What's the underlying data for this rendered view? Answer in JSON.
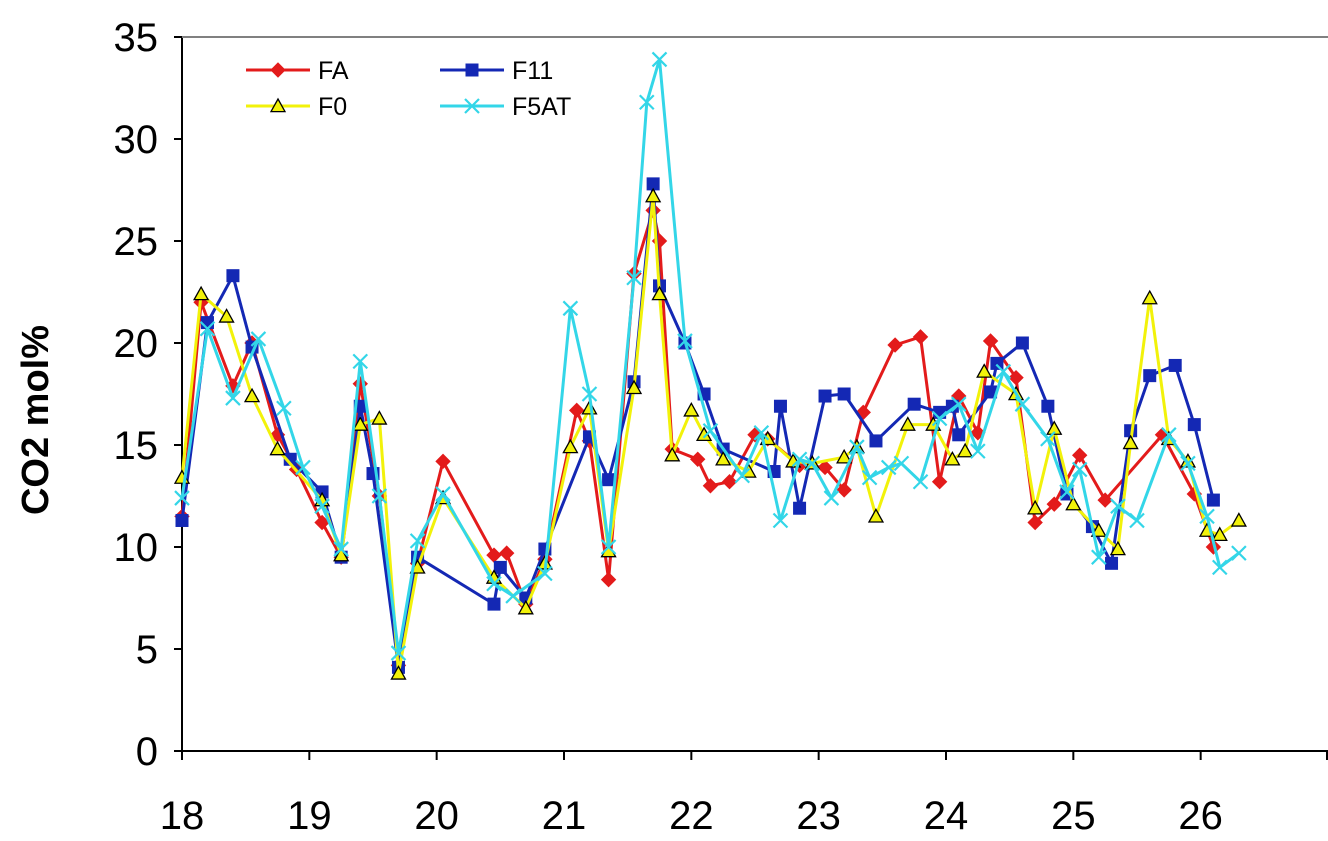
{
  "chart_data": {
    "type": "line",
    "title": "",
    "xlabel": "",
    "ylabel": "CO2 mol%",
    "xlim": [
      18,
      27
    ],
    "ylim": [
      0,
      35
    ],
    "xticks": [
      "18",
      "19",
      "20",
      "21",
      "22",
      "23",
      "24",
      "25",
      "26"
    ],
    "yticks": [
      "0",
      "5",
      "10",
      "15",
      "20",
      "25",
      "30",
      "35"
    ],
    "grid": false,
    "legend_position": "top-left",
    "series": [
      {
        "name": "FA",
        "color": "#e31b1b",
        "marker": "diamond",
        "points": [
          [
            18.0,
            11.5
          ],
          [
            18.15,
            22.0
          ],
          [
            18.4,
            17.9
          ],
          [
            18.55,
            20.0
          ],
          [
            18.75,
            15.5
          ],
          [
            18.9,
            13.8
          ],
          [
            19.1,
            11.2
          ],
          [
            19.25,
            9.5
          ],
          [
            19.4,
            18.0
          ],
          [
            19.55,
            12.5
          ],
          [
            19.7,
            4.2
          ],
          [
            19.85,
            9.2
          ],
          [
            20.05,
            14.2
          ],
          [
            20.45,
            9.6
          ],
          [
            20.55,
            9.7
          ],
          [
            20.7,
            7.2
          ],
          [
            20.85,
            9.4
          ],
          [
            21.1,
            16.7
          ],
          [
            21.2,
            15.2
          ],
          [
            21.35,
            8.4
          ],
          [
            21.55,
            23.4
          ],
          [
            21.7,
            26.5
          ],
          [
            21.75,
            25.0
          ],
          [
            21.85,
            14.8
          ],
          [
            22.05,
            14.3
          ],
          [
            22.15,
            13.0
          ],
          [
            22.3,
            13.2
          ],
          [
            22.5,
            15.5
          ],
          [
            22.6,
            15.3
          ],
          [
            22.85,
            14.0
          ],
          [
            23.05,
            13.9
          ],
          [
            23.2,
            12.8
          ],
          [
            23.35,
            16.6
          ],
          [
            23.6,
            19.9
          ],
          [
            23.8,
            20.3
          ],
          [
            23.95,
            13.2
          ],
          [
            24.1,
            17.4
          ],
          [
            24.25,
            15.6
          ],
          [
            24.35,
            20.1
          ],
          [
            24.55,
            18.3
          ],
          [
            24.7,
            11.2
          ],
          [
            24.85,
            12.1
          ],
          [
            25.05,
            14.5
          ],
          [
            25.25,
            12.3
          ],
          [
            25.7,
            15.5
          ],
          [
            25.95,
            12.6
          ],
          [
            26.1,
            10.0
          ]
        ]
      },
      {
        "name": "F11",
        "color": "#1428b4",
        "marker": "square",
        "points": [
          [
            18.0,
            11.3
          ],
          [
            18.2,
            21.0
          ],
          [
            18.4,
            23.3
          ],
          [
            18.55,
            19.8
          ],
          [
            18.85,
            14.3
          ],
          [
            19.1,
            12.7
          ],
          [
            19.25,
            9.5
          ],
          [
            19.4,
            16.9
          ],
          [
            19.5,
            13.6
          ],
          [
            19.7,
            4.1
          ],
          [
            19.85,
            9.5
          ],
          [
            20.45,
            7.2
          ],
          [
            20.5,
            9.0
          ],
          [
            20.7,
            7.5
          ],
          [
            20.85,
            9.9
          ],
          [
            21.2,
            15.4
          ],
          [
            21.35,
            13.3
          ],
          [
            21.55,
            18.1
          ],
          [
            21.7,
            27.8
          ],
          [
            21.75,
            22.8
          ],
          [
            21.95,
            20.0
          ],
          [
            22.1,
            17.5
          ],
          [
            22.25,
            14.8
          ],
          [
            22.65,
            13.7
          ],
          [
            22.7,
            16.9
          ],
          [
            22.85,
            11.9
          ],
          [
            23.05,
            17.4
          ],
          [
            23.2,
            17.5
          ],
          [
            23.45,
            15.2
          ],
          [
            23.75,
            17.0
          ],
          [
            23.95,
            16.6
          ],
          [
            24.05,
            16.9
          ],
          [
            24.1,
            15.5
          ],
          [
            24.35,
            17.6
          ],
          [
            24.4,
            19.0
          ],
          [
            24.6,
            20.0
          ],
          [
            24.8,
            16.9
          ],
          [
            24.95,
            12.6
          ],
          [
            25.15,
            11.0
          ],
          [
            25.3,
            9.2
          ],
          [
            25.45,
            15.7
          ],
          [
            25.6,
            18.4
          ],
          [
            25.8,
            18.9
          ],
          [
            25.95,
            16.0
          ],
          [
            26.1,
            12.3
          ]
        ]
      },
      {
        "name": "F0",
        "color": "#f2f20a",
        "marker": "triangle",
        "points": [
          [
            18.0,
            13.4
          ],
          [
            18.15,
            22.4
          ],
          [
            18.35,
            21.3
          ],
          [
            18.55,
            17.4
          ],
          [
            18.75,
            14.8
          ],
          [
            19.1,
            12.3
          ],
          [
            19.25,
            9.6
          ],
          [
            19.4,
            16.0
          ],
          [
            19.55,
            16.3
          ],
          [
            19.7,
            3.8
          ],
          [
            19.85,
            9.0
          ],
          [
            20.05,
            12.4
          ],
          [
            20.45,
            8.5
          ],
          [
            20.7,
            7.0
          ],
          [
            20.85,
            9.2
          ],
          [
            21.05,
            14.9
          ],
          [
            21.2,
            16.8
          ],
          [
            21.35,
            9.8
          ],
          [
            21.55,
            17.8
          ],
          [
            21.7,
            27.2
          ],
          [
            21.75,
            22.4
          ],
          [
            21.85,
            14.5
          ],
          [
            22.0,
            16.7
          ],
          [
            22.1,
            15.5
          ],
          [
            22.25,
            14.3
          ],
          [
            22.45,
            13.7
          ],
          [
            22.6,
            15.3
          ],
          [
            22.8,
            14.2
          ],
          [
            22.95,
            14.1
          ],
          [
            23.2,
            14.4
          ],
          [
            23.3,
            14.9
          ],
          [
            23.45,
            11.5
          ],
          [
            23.7,
            16.0
          ],
          [
            23.9,
            16.0
          ],
          [
            24.05,
            14.3
          ],
          [
            24.15,
            14.7
          ],
          [
            24.3,
            18.6
          ],
          [
            24.55,
            17.5
          ],
          [
            24.7,
            11.9
          ],
          [
            24.85,
            15.8
          ],
          [
            25.0,
            12.1
          ],
          [
            25.2,
            10.8
          ],
          [
            25.35,
            9.9
          ],
          [
            25.45,
            15.1
          ],
          [
            25.6,
            22.2
          ],
          [
            25.75,
            15.3
          ],
          [
            25.9,
            14.2
          ],
          [
            26.05,
            10.8
          ],
          [
            26.15,
            10.6
          ],
          [
            26.3,
            11.3
          ]
        ]
      },
      {
        "name": "F5AT",
        "color": "#33d6e8",
        "marker": "x",
        "points": [
          [
            18.0,
            12.4
          ],
          [
            18.2,
            20.7
          ],
          [
            18.4,
            17.3
          ],
          [
            18.6,
            20.2
          ],
          [
            18.8,
            16.8
          ],
          [
            18.95,
            13.9
          ],
          [
            19.1,
            12.0
          ],
          [
            19.25,
            9.9
          ],
          [
            19.4,
            19.1
          ],
          [
            19.55,
            12.5
          ],
          [
            19.7,
            4.8
          ],
          [
            19.85,
            10.3
          ],
          [
            20.05,
            12.6
          ],
          [
            20.45,
            8.2
          ],
          [
            20.6,
            7.6
          ],
          [
            20.85,
            8.7
          ],
          [
            21.05,
            21.7
          ],
          [
            21.2,
            17.5
          ],
          [
            21.35,
            10.0
          ],
          [
            21.55,
            23.2
          ],
          [
            21.65,
            31.8
          ],
          [
            21.75,
            33.9
          ],
          [
            21.95,
            20.1
          ],
          [
            22.15,
            15.7
          ],
          [
            22.4,
            13.5
          ],
          [
            22.55,
            15.6
          ],
          [
            22.7,
            11.3
          ],
          [
            22.85,
            14.3
          ],
          [
            22.95,
            14.1
          ],
          [
            23.1,
            12.4
          ],
          [
            23.3,
            14.9
          ],
          [
            23.4,
            13.4
          ],
          [
            23.55,
            13.9
          ],
          [
            23.65,
            14.1
          ],
          [
            23.8,
            13.2
          ],
          [
            23.95,
            16.3
          ],
          [
            24.1,
            17.0
          ],
          [
            24.25,
            14.7
          ],
          [
            24.45,
            18.6
          ],
          [
            24.6,
            17.0
          ],
          [
            24.8,
            15.3
          ],
          [
            24.95,
            12.7
          ],
          [
            25.05,
            13.8
          ],
          [
            25.2,
            9.5
          ],
          [
            25.35,
            12.0
          ],
          [
            25.5,
            11.3
          ],
          [
            25.75,
            15.5
          ],
          [
            25.9,
            14.1
          ],
          [
            26.05,
            11.5
          ],
          [
            26.15,
            9.0
          ],
          [
            26.3,
            9.7
          ]
        ]
      }
    ]
  }
}
